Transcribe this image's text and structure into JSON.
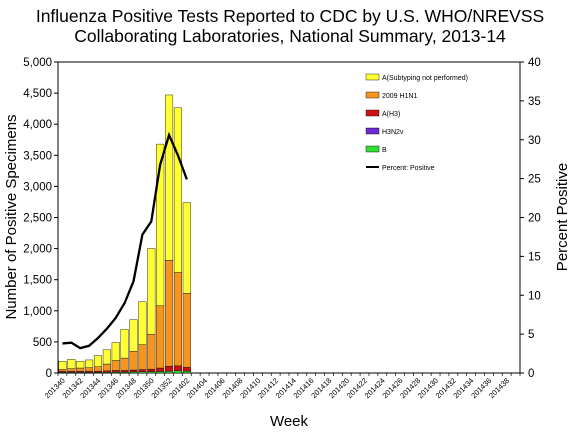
{
  "chart_data": {
    "type": "bar",
    "title_line1": "Influenza Positive Tests Reported to CDC by U.S. WHO/NREVSS",
    "title_line2": "Collaborating Laboratories, National Summary, 2013-14",
    "xlabel": "Week",
    "ylabel": "Number of Positive Specimens",
    "y2label": "Percent Positive",
    "ylim": [
      0,
      5000
    ],
    "y2lim": [
      0,
      40
    ],
    "yticks": [
      "0",
      "500",
      "1,000",
      "1,500",
      "2,000",
      "2,500",
      "3,000",
      "3,500",
      "4,000",
      "4,500",
      "5,000"
    ],
    "y2ticks": [
      "0",
      "5",
      "10",
      "15",
      "20",
      "25",
      "30",
      "35",
      "40"
    ],
    "xtick_labels": [
      "201340",
      "201342",
      "201344",
      "201346",
      "201348",
      "201350",
      "201352",
      "201402",
      "201404",
      "201406",
      "201408",
      "201410",
      "201412",
      "201414",
      "201416",
      "201418",
      "201420",
      "201422",
      "201424",
      "201426",
      "201428",
      "201430",
      "201432",
      "201434",
      "201436",
      "201438"
    ],
    "categories": [
      "201340",
      "201341",
      "201342",
      "201343",
      "201344",
      "201345",
      "201346",
      "201347",
      "201348",
      "201349",
      "201350",
      "201351",
      "201352",
      "201401",
      "201402"
    ],
    "total_weeks": 52,
    "stacked": true,
    "series": [
      {
        "name": "B",
        "color": "#33dd33",
        "values": [
          10,
          10,
          10,
          10,
          10,
          12,
          15,
          15,
          18,
          20,
          22,
          25,
          30,
          35,
          30
        ]
      },
      {
        "name": "H3N2v",
        "color": "#6a2bd1",
        "values": [
          0,
          0,
          0,
          0,
          0,
          0,
          0,
          0,
          0,
          0,
          0,
          0,
          0,
          0,
          0
        ]
      },
      {
        "name": "A(H3)",
        "color": "#cc1111",
        "values": [
          20,
          20,
          20,
          20,
          20,
          22,
          25,
          25,
          30,
          35,
          40,
          55,
          80,
          80,
          60
        ]
      },
      {
        "name": "2009 H1N1",
        "color": "#f5951e",
        "values": [
          30,
          40,
          50,
          55,
          70,
          110,
          160,
          200,
          300,
          400,
          560,
          1000,
          1700,
          1500,
          1190
        ]
      },
      {
        "name": "A(Subtyping not performed)",
        "color": "#ffff33",
        "values": [
          130,
          150,
          110,
          125,
          180,
          230,
          290,
          460,
          510,
          690,
          1380,
          2600,
          2660,
          2650,
          1460
        ]
      }
    ],
    "line_series": {
      "name": "Percent: Positive",
      "color": "#000000",
      "values": [
        3.8,
        3.9,
        3.2,
        3.5,
        4.5,
        5.7,
        7.1,
        9.0,
        11.8,
        17.8,
        19.5,
        26.8,
        30.6,
        28.0,
        24.9
      ]
    },
    "legend_order": [
      "A(Subtyping not performed)",
      "2009 H1N1",
      "A(H3)",
      "H3N2v",
      "B",
      "Percent: Positive"
    ],
    "legend_placement": "top-center"
  }
}
